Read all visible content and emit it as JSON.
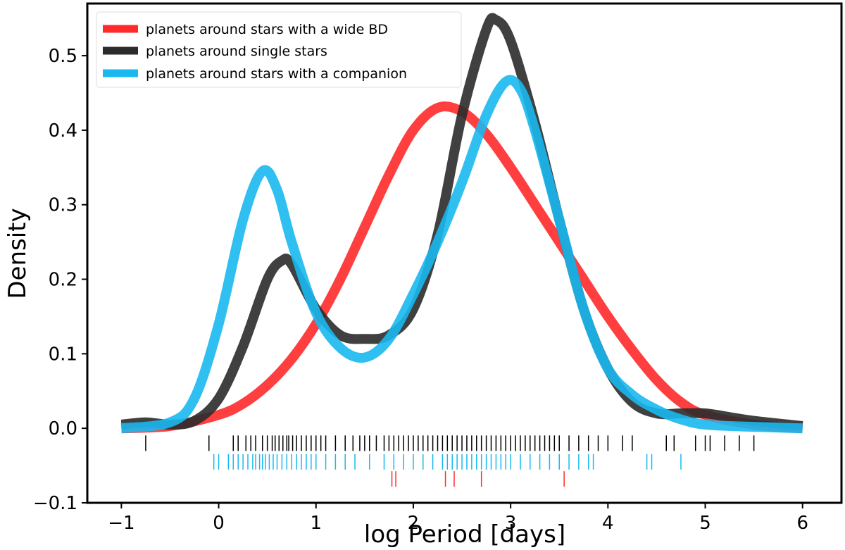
{
  "chart_data": {
    "type": "line",
    "title": "",
    "xlabel": "log Period [days]",
    "ylabel": "Density",
    "xlim": [
      -1.35,
      6.4
    ],
    "ylim": [
      -0.1,
      0.57
    ],
    "xticks": [
      -1,
      0,
      1,
      2,
      3,
      4,
      5,
      6
    ],
    "xtick_labels": [
      "−1",
      "0",
      "1",
      "2",
      "3",
      "4",
      "5",
      "6"
    ],
    "yticks": [
      -0.1,
      0.0,
      0.1,
      0.2,
      0.3,
      0.4,
      0.5
    ],
    "ytick_labels": [
      "−0.1",
      "0.0",
      "0.1",
      "0.2",
      "0.3",
      "0.4",
      "0.5"
    ],
    "grid": false,
    "legend_position": "top-left",
    "series": [
      {
        "name": "planets around stars with a wide BD",
        "color": "#ff2a2a",
        "x": [
          -1,
          -0.5,
          0,
          0.25,
          0.5,
          0.75,
          1,
          1.25,
          1.5,
          1.75,
          2,
          2.25,
          2.5,
          2.75,
          3,
          3.25,
          3.5,
          3.75,
          4,
          4.25,
          4.5,
          4.75,
          5,
          5.5,
          6
        ],
        "y": [
          0.0,
          0.003,
          0.018,
          0.033,
          0.058,
          0.093,
          0.14,
          0.2,
          0.27,
          0.34,
          0.4,
          0.43,
          0.425,
          0.395,
          0.35,
          0.3,
          0.25,
          0.2,
          0.15,
          0.105,
          0.065,
          0.035,
          0.018,
          0.005,
          0.0
        ]
      },
      {
        "name": "planets around single stars",
        "color": "#2b2b2b",
        "x": [
          -1,
          -0.75,
          -0.5,
          -0.25,
          0,
          0.25,
          0.5,
          0.65,
          0.75,
          1,
          1.25,
          1.5,
          1.75,
          2,
          2.25,
          2.5,
          2.75,
          2.85,
          3,
          3.25,
          3.5,
          3.75,
          4,
          4.25,
          4.5,
          4.75,
          5,
          5.25,
          5.5,
          6
        ],
        "y": [
          0.005,
          0.008,
          0.005,
          0.01,
          0.04,
          0.11,
          0.2,
          0.225,
          0.22,
          0.16,
          0.125,
          0.12,
          0.125,
          0.16,
          0.26,
          0.42,
          0.535,
          0.548,
          0.52,
          0.41,
          0.28,
          0.16,
          0.08,
          0.035,
          0.02,
          0.02,
          0.02,
          0.015,
          0.01,
          0.003
        ]
      },
      {
        "name": "planets around stars with a companion",
        "color": "#1ab8f0",
        "x": [
          -1,
          -0.5,
          -0.25,
          0,
          0.25,
          0.45,
          0.6,
          0.75,
          1,
          1.25,
          1.5,
          1.75,
          2,
          2.25,
          2.5,
          2.75,
          2.95,
          3.1,
          3.25,
          3.5,
          3.75,
          4,
          4.25,
          4.5,
          4.75,
          5,
          5.5,
          6
        ],
        "y": [
          0.0,
          0.008,
          0.04,
          0.14,
          0.28,
          0.345,
          0.32,
          0.25,
          0.155,
          0.108,
          0.095,
          0.12,
          0.18,
          0.25,
          0.33,
          0.42,
          0.465,
          0.455,
          0.4,
          0.28,
          0.16,
          0.08,
          0.045,
          0.025,
          0.012,
          0.005,
          0.002,
          0.0
        ]
      }
    ],
    "rugs": [
      {
        "name": "single stars",
        "color": "#000000",
        "y": -0.02,
        "x": [
          -0.75,
          -0.1,
          0.15,
          0.2,
          0.28,
          0.33,
          0.38,
          0.45,
          0.5,
          0.55,
          0.58,
          0.62,
          0.66,
          0.7,
          0.72,
          0.76,
          0.8,
          0.85,
          0.9,
          0.95,
          1.0,
          1.05,
          1.1,
          1.2,
          1.3,
          1.38,
          1.45,
          1.5,
          1.55,
          1.62,
          1.7,
          1.75,
          1.8,
          1.85,
          1.9,
          1.95,
          2.0,
          2.05,
          2.1,
          2.15,
          2.2,
          2.25,
          2.3,
          2.35,
          2.4,
          2.45,
          2.5,
          2.55,
          2.6,
          2.65,
          2.7,
          2.75,
          2.8,
          2.85,
          2.9,
          2.95,
          3.0,
          3.05,
          3.1,
          3.15,
          3.2,
          3.25,
          3.3,
          3.35,
          3.4,
          3.45,
          3.5,
          3.6,
          3.7,
          3.8,
          3.9,
          4.0,
          4.15,
          4.25,
          4.6,
          4.68,
          4.9,
          5.0,
          5.05,
          5.2,
          5.35,
          5.5
        ]
      },
      {
        "name": "stars with a companion",
        "color": "#1ab8f0",
        "y": -0.045,
        "x": [
          -0.05,
          0.0,
          0.1,
          0.15,
          0.2,
          0.25,
          0.3,
          0.35,
          0.38,
          0.42,
          0.45,
          0.48,
          0.52,
          0.56,
          0.6,
          0.65,
          0.7,
          0.75,
          0.8,
          0.85,
          0.9,
          0.95,
          1.0,
          1.1,
          1.2,
          1.3,
          1.4,
          1.55,
          1.7,
          1.8,
          1.9,
          2.0,
          2.1,
          2.2,
          2.3,
          2.35,
          2.4,
          2.45,
          2.5,
          2.55,
          2.6,
          2.65,
          2.7,
          2.75,
          2.8,
          2.85,
          2.9,
          2.95,
          3.0,
          3.1,
          3.2,
          3.3,
          3.4,
          3.5,
          3.6,
          3.7,
          3.8,
          3.85,
          4.4,
          4.45,
          4.75
        ]
      },
      {
        "name": "stars with a wide BD",
        "color": "#ff2a2a",
        "y": -0.068,
        "x": [
          1.78,
          1.82,
          2.33,
          2.42,
          2.7,
          3.55
        ]
      }
    ]
  }
}
